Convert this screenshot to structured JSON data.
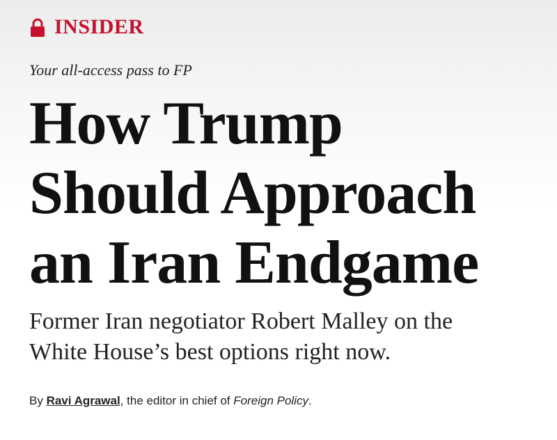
{
  "header": {
    "label": "INSIDER",
    "tagline": "Your all-access pass to FP"
  },
  "article": {
    "headline_lines": [
      "How Trump",
      "Should Approach",
      "an Iran Endgame"
    ],
    "subheadline_lines": [
      "Former Iran negotiator Robert Malley on the",
      "White House’s best options right now."
    ],
    "byline": {
      "prefix": "By",
      "author": "Ravi Agrawal",
      "middle": ", the editor in chief of",
      "publication": "Foreign Policy",
      "end": "."
    }
  }
}
